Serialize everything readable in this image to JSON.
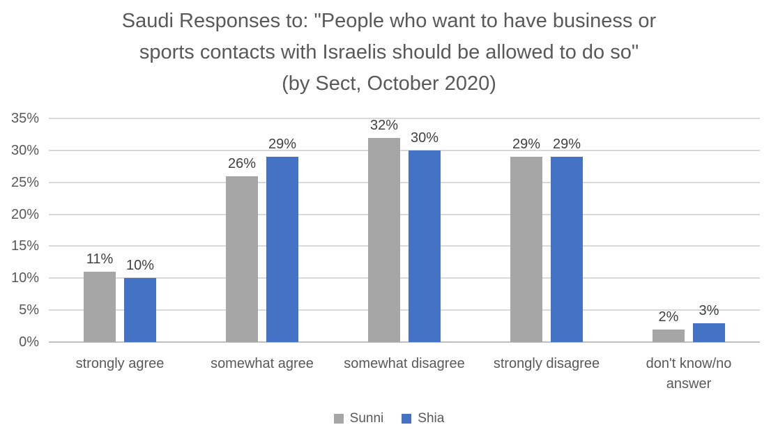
{
  "chart_data": {
    "type": "bar",
    "title_lines": [
      "Saudi Responses to: \"People who want to have business or",
      "sports contacts with Israelis should be allowed to do so\"",
      "(by Sect, October 2020)"
    ],
    "title": "Saudi Responses to: \"People who want to have business or sports contacts with Israelis should be allowed to do so\" (by Sect, October 2020)",
    "categories": [
      "strongly agree",
      "somewhat agree",
      "somewhat disagree",
      "strongly disagree",
      "don't know/no answer"
    ],
    "series": [
      {
        "name": "Sunni",
        "color": "#a6a6a6",
        "values": [
          11,
          26,
          32,
          29,
          2
        ]
      },
      {
        "name": "Shia",
        "color": "#4472c4",
        "values": [
          10,
          29,
          30,
          29,
          3
        ]
      }
    ],
    "data_label_format": "{v}%",
    "y_axis": {
      "min": 0,
      "max": 35,
      "step": 5,
      "tick_labels": [
        "0%",
        "5%",
        "10%",
        "15%",
        "20%",
        "25%",
        "30%",
        "35%"
      ]
    },
    "xlabel": "",
    "ylabel": "",
    "grid": true,
    "legend_position": "bottom",
    "colors": {
      "title_text": "#595959",
      "axis_text": "#595959",
      "data_label_text": "#404040",
      "gridline": "#d9d9d9",
      "axis_line": "#bfbfbf",
      "background": "#ffffff"
    }
  }
}
